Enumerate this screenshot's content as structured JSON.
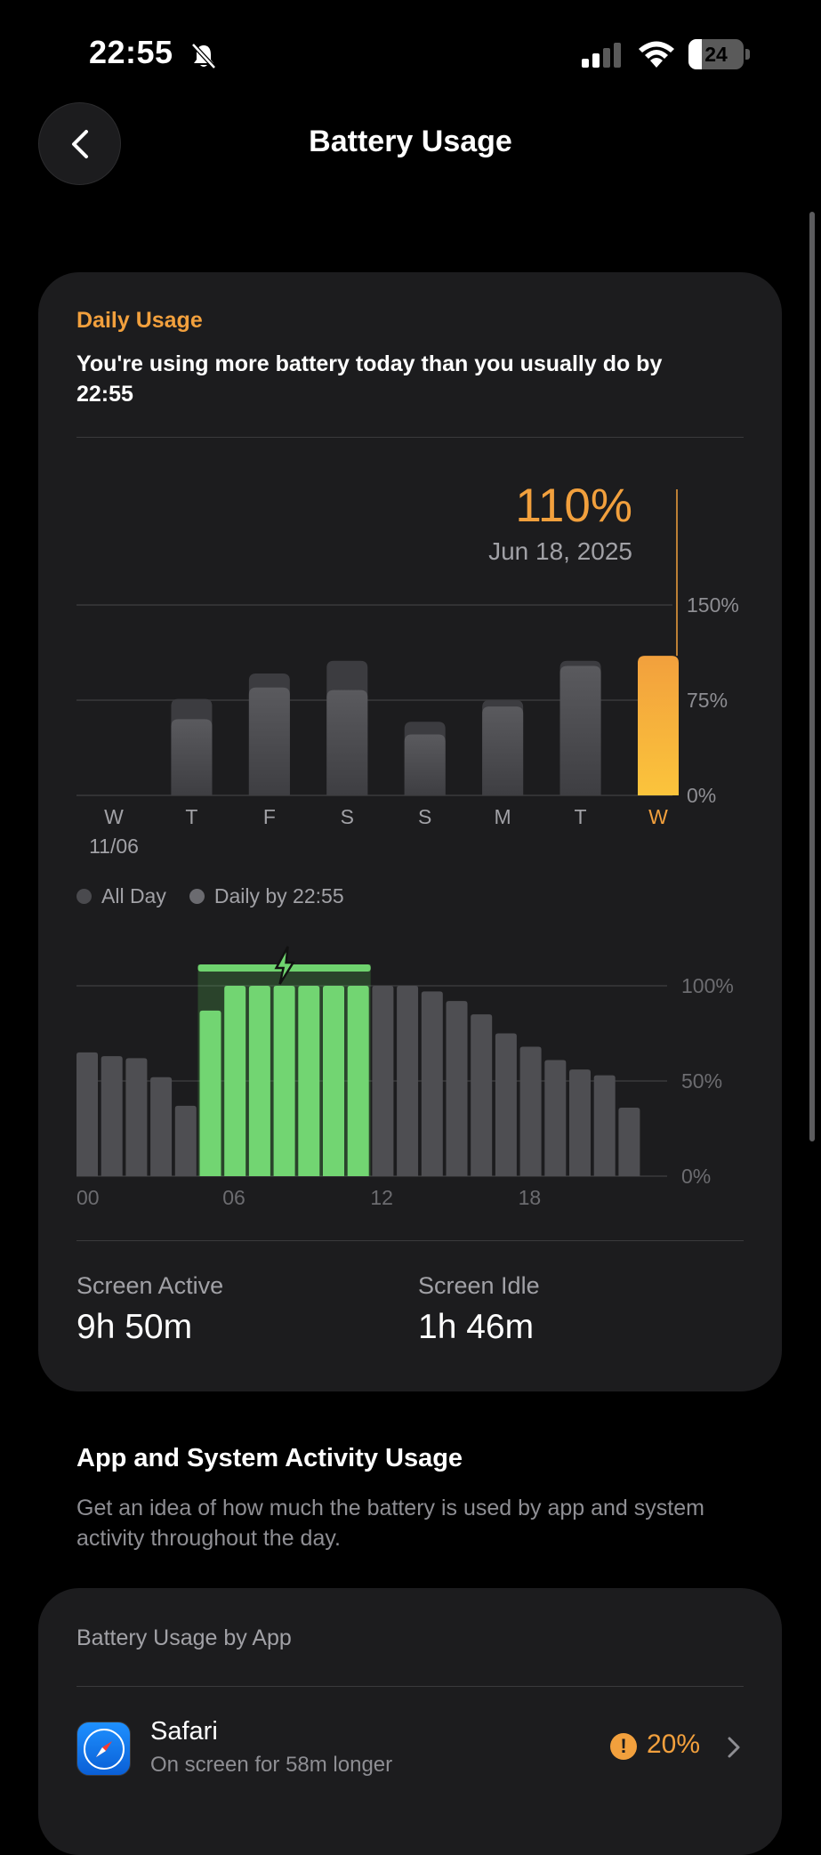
{
  "status_bar": {
    "time": "22:55",
    "battery_level": "24",
    "icons": [
      "bell-slash-icon",
      "cellular-signal-icon",
      "wifi-icon",
      "battery-icon"
    ]
  },
  "nav": {
    "title": "Battery Usage",
    "back_icon": "chevron-left-icon"
  },
  "daily_usage": {
    "label": "Daily Usage",
    "description": "You're using more battery today than you usually do by 22:55",
    "selected_value": "110%",
    "selected_date": "Jun 18, 2025"
  },
  "legend": {
    "all_day": "All Day",
    "daily_by": "Daily by 22:55"
  },
  "stats": {
    "screen_active_label": "Screen Active",
    "screen_active_value": "9h 50m",
    "screen_idle_label": "Screen Idle",
    "screen_idle_value": "1h 46m"
  },
  "app_activity": {
    "title": "App and System Activity Usage",
    "description": "Get an idea of how much the battery is used by app and system activity throughout the day."
  },
  "by_app": {
    "label": "Battery Usage by App",
    "apps": [
      {
        "name": "Safari",
        "subtitle": "On screen for 58m longer",
        "percent": "20%",
        "icon": "safari-compass-icon",
        "warning_icon": "exclamation-circle-icon"
      }
    ]
  },
  "colors": {
    "accent_orange": "#f2a03d",
    "charging_green": "#6fd36f",
    "bar_gray": "#4e4e52",
    "card_bg": "#1c1c1e"
  },
  "chart_data": [
    {
      "type": "bar",
      "categories": [
        "W",
        "T",
        "F",
        "S",
        "S",
        "M",
        "T",
        "W"
      ],
      "category_sublabels": [
        "11/06",
        "",
        "",
        "",
        "",
        "",
        "",
        ""
      ],
      "series": [
        {
          "name": "All Day",
          "values": [
            0,
            76,
            96,
            106,
            58,
            75,
            106,
            110
          ]
        },
        {
          "name": "Daily by 22:55",
          "values": [
            0,
            60,
            85,
            83,
            48,
            70,
            102,
            110
          ]
        }
      ],
      "highlight_index": 7,
      "yticks": [
        "0%",
        "75%",
        "150%"
      ],
      "ylim": [
        0,
        150
      ],
      "grid": true,
      "legend_placement": "bottom-left"
    },
    {
      "type": "bar",
      "x": [
        0,
        1,
        2,
        3,
        4,
        5,
        6,
        7,
        8,
        9,
        10,
        11,
        12,
        13,
        14,
        15,
        16,
        17,
        18,
        19,
        20,
        21,
        22
      ],
      "xticks": [
        "00",
        "06",
        "12",
        "18"
      ],
      "values": [
        65,
        63,
        62,
        52,
        37,
        87,
        100,
        100,
        100,
        100,
        100,
        100,
        100,
        100,
        97,
        92,
        85,
        75,
        68,
        61,
        56,
        53,
        36
      ],
      "charging": [
        false,
        false,
        false,
        false,
        false,
        true,
        true,
        true,
        true,
        true,
        true,
        true,
        false,
        false,
        false,
        false,
        false,
        false,
        false,
        false,
        false,
        false,
        false
      ],
      "yticks": [
        "0%",
        "50%",
        "100%"
      ],
      "ylim": [
        0,
        100
      ],
      "grid": true
    }
  ]
}
